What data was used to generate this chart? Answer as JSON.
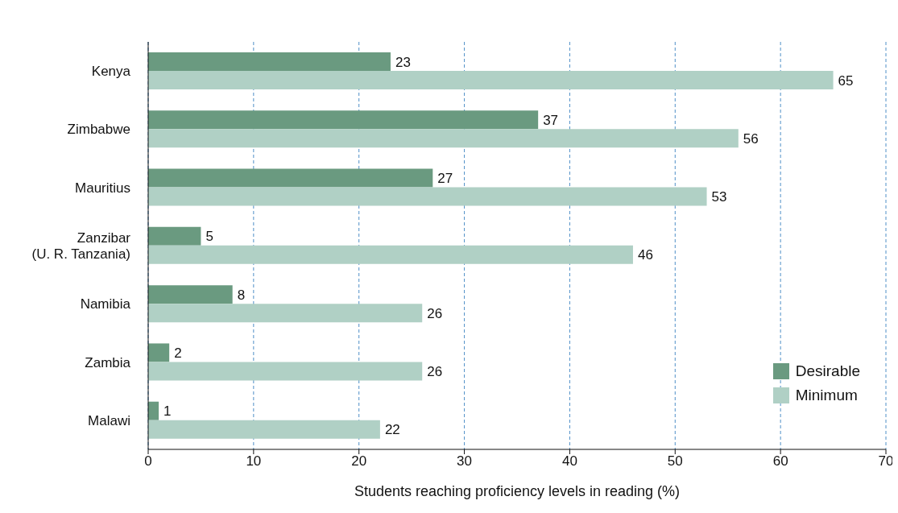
{
  "chart_data": {
    "type": "bar",
    "orientation": "horizontal",
    "xlabel": "Students reaching proficiency levels in reading (%)",
    "categories": [
      "Kenya",
      "Zimbabwe",
      "Mauritius",
      "Zanzibar\n(U. R. Tanzania)",
      "Namibia",
      "Zambia",
      "Malawi"
    ],
    "series": [
      {
        "name": "Desirable",
        "color": "#6a9a80",
        "values": [
          23,
          37,
          27,
          5,
          8,
          2,
          1
        ]
      },
      {
        "name": "Minimum",
        "color": "#b0d0c5",
        "values": [
          65,
          56,
          53,
          46,
          26,
          26,
          22
        ]
      }
    ],
    "xlim": [
      0,
      70
    ],
    "xticks": [
      0,
      10,
      20,
      30,
      40,
      50,
      60,
      70
    ],
    "grid": "x",
    "legend": "bottom right",
    "data_labels": true
  }
}
